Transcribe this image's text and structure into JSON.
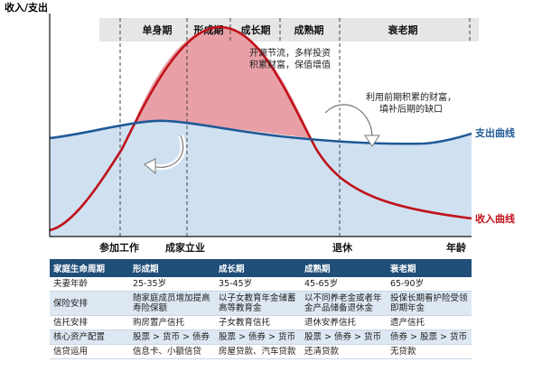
{
  "diagram": {
    "y_axis_label": "收入/支出",
    "phases": [
      "单身期",
      "形成期",
      "成长期",
      "成熟期",
      "衰老期"
    ],
    "x_labels": [
      "参加工作",
      "成家立业",
      "退休",
      "年龄"
    ],
    "annotation_top": [
      "开源节流，多样投资",
      "积累财富，保值增值"
    ],
    "annotation_right": [
      "利用前期积累的财富，",
      "填补后期的缺口"
    ],
    "curve_labels": {
      "expense": "支出曲线",
      "income": "收入曲线"
    },
    "colors": {
      "expense": "#1f5a96",
      "income": "#c0121a",
      "fill_income": "#e8a0a6",
      "fill_expense": "#cfe0f1",
      "phase_bar": "#e6e6e6"
    }
  },
  "table": {
    "headers": [
      "家庭生命周期",
      "形成期",
      "成长期",
      "成熟期",
      "衰老期"
    ],
    "rows": [
      [
        "夫妻年龄",
        "25-35岁",
        "35-45岁",
        "45-65岁",
        "65-90岁"
      ],
      [
        "保险安排",
        "随家庭成员增加提高寿险保额",
        "以子女教育年金储蓄高等教育金",
        "以不同养老金或者年金产品储备退休金",
        "投保长期看护险受领即期年金"
      ],
      [
        "信托安排",
        "购房置产信托",
        "子女教育信托",
        "退休安养信托",
        "遗产信托"
      ],
      [
        "核心资产配置",
        "股票 > 货币 > 债券",
        "股票 > 债券 > 货币",
        "股票 > 债券 > 货币",
        "债券 > 股票 > 货币"
      ],
      [
        "信贷运用",
        "信息卡、小额信贷",
        "房屋贷款、汽车贷款",
        "还清贷款",
        "无贷款"
      ]
    ]
  }
}
